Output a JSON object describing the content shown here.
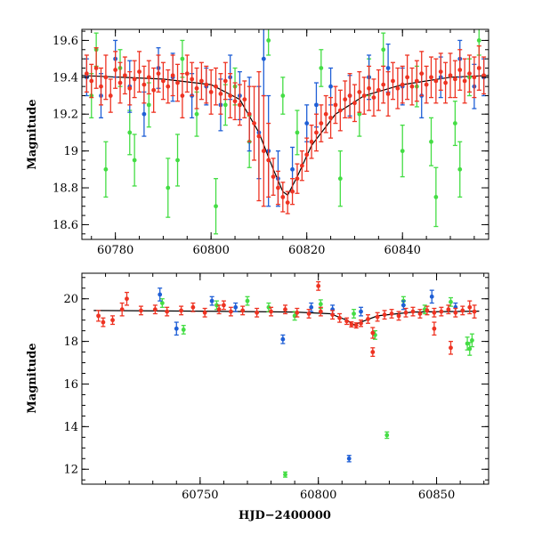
{
  "colors": {
    "series_red": "#ee3322",
    "series_blue": "#1f5fd6",
    "series_green": "#44dd44",
    "model_line": "#000000"
  },
  "chart_data": [
    {
      "type": "scatter",
      "xlabel": "",
      "ylabel": "Magnitude",
      "xlim": [
        60773,
        60858
      ],
      "ylim": [
        19.66,
        18.52
      ],
      "y_inverted": true,
      "x_ticks": [
        60780,
        60800,
        60820,
        60840
      ],
      "y_ticks": [
        18.6,
        18.8,
        19.0,
        19.2,
        19.4,
        19.6
      ],
      "y_tick_labels": [
        "18.6",
        "18.8",
        "19",
        "19.2",
        "19.4",
        "19.6"
      ],
      "grid": false,
      "model_curve": {
        "x": [
          60773,
          60790,
          60800,
          60806,
          60810,
          60813,
          60815,
          60816,
          60818,
          60821,
          60826,
          60832,
          60840,
          60850,
          60858
        ],
        "y": [
          19.41,
          19.39,
          19.36,
          19.28,
          19.1,
          18.9,
          18.78,
          18.76,
          18.86,
          19.03,
          19.2,
          19.3,
          19.36,
          19.4,
          19.41
        ]
      },
      "series": [
        {
          "color": "#44dd44",
          "x": [
            60775,
            60778,
            60781,
            60784,
            60787,
            60791,
            60794,
            60797,
            60801,
            60805,
            60808,
            60812,
            60818,
            60823,
            60827,
            60831,
            60836,
            60840,
            60843,
            60847,
            60851,
            60854,
            60856,
            60776,
            60783,
            60793,
            60803,
            60815,
            60833,
            60846,
            60852
          ],
          "y": [
            19.3,
            18.9,
            19.45,
            18.95,
            19.25,
            18.8,
            19.5,
            19.2,
            18.7,
            19.35,
            19.05,
            19.6,
            19.1,
            19.45,
            18.85,
            19.2,
            19.55,
            19.0,
            19.35,
            18.75,
            19.15,
            19.4,
            19.6,
            19.55,
            19.1,
            18.95,
            19.25,
            19.3,
            19.4,
            19.05,
            18.9
          ],
          "err": [
            0.12,
            0.15,
            0.1,
            0.14,
            0.12,
            0.16,
            0.1,
            0.12,
            0.15,
            0.1,
            0.14,
            0.08,
            0.12,
            0.1,
            0.15,
            0.12,
            0.09,
            0.14,
            0.11,
            0.16,
            0.12,
            0.1,
            0.08,
            0.09,
            0.12,
            0.14,
            0.11,
            0.1,
            0.1,
            0.13,
            0.15
          ]
        },
        {
          "color": "#1f5fd6",
          "x": [
            60774,
            60777,
            60780,
            60783,
            60786,
            60789,
            60792,
            60796,
            60799,
            60802,
            60804,
            60806,
            60808,
            60810,
            60811,
            60812,
            60814,
            60817,
            60820,
            60822,
            60825,
            60829,
            60833,
            60837,
            60840,
            60844,
            60848,
            60852,
            60855,
            60857
          ],
          "y": [
            19.4,
            19.3,
            19.5,
            19.35,
            19.2,
            19.45,
            19.4,
            19.3,
            19.35,
            19.25,
            19.4,
            19.3,
            19.2,
            19.1,
            19.5,
            19.0,
            18.85,
            18.9,
            19.15,
            19.25,
            19.35,
            19.3,
            19.4,
            19.45,
            19.35,
            19.3,
            19.4,
            19.5,
            19.35,
            19.4
          ],
          "err": [
            0.1,
            0.12,
            0.1,
            0.14,
            0.12,
            0.11,
            0.13,
            0.12,
            0.1,
            0.14,
            0.12,
            0.13,
            0.2,
            0.25,
            0.2,
            0.3,
            0.15,
            0.12,
            0.1,
            0.12,
            0.1,
            0.11,
            0.12,
            0.13,
            0.1,
            0.12,
            0.11,
            0.1,
            0.12,
            0.1
          ]
        },
        {
          "color": "#ee3322",
          "x": [
            60774,
            60775,
            60776,
            60777,
            60778,
            60779,
            60780,
            60781,
            60782,
            60783,
            60784,
            60785,
            60786,
            60787,
            60788,
            60789,
            60790,
            60791,
            60792,
            60793,
            60794,
            60795,
            60796,
            60797,
            60798,
            60799,
            60800,
            60801,
            60802,
            60803,
            60804,
            60805,
            60806,
            60807,
            60808,
            60809,
            60810,
            60811,
            60812,
            60813,
            60814,
            60815,
            60816,
            60817,
            60818,
            60819,
            60820,
            60821,
            60822,
            60823,
            60824,
            60825,
            60826,
            60827,
            60828,
            60829,
            60830,
            60831,
            60832,
            60833,
            60834,
            60835,
            60836,
            60837,
            60838,
            60839,
            60840,
            60841,
            60842,
            60843,
            60844,
            60845,
            60846,
            60847,
            60848,
            60849,
            60850,
            60851,
            60852,
            60853,
            60854,
            60855,
            60856,
            60857
          ],
          "y": [
            19.42,
            19.38,
            19.45,
            19.35,
            19.4,
            19.3,
            19.44,
            19.37,
            19.41,
            19.34,
            19.39,
            19.43,
            19.36,
            19.4,
            19.33,
            19.42,
            19.38,
            19.35,
            19.41,
            19.37,
            19.3,
            19.42,
            19.39,
            19.34,
            19.38,
            19.36,
            19.32,
            19.35,
            19.31,
            19.38,
            19.3,
            19.27,
            19.25,
            19.28,
            19.2,
            19.15,
            19.08,
            19.0,
            18.95,
            18.86,
            18.8,
            18.75,
            18.72,
            18.78,
            18.85,
            18.92,
            18.98,
            19.05,
            19.1,
            19.15,
            19.2,
            19.18,
            19.25,
            19.22,
            19.28,
            19.3,
            19.26,
            19.32,
            19.3,
            19.34,
            19.29,
            19.33,
            19.36,
            19.31,
            19.38,
            19.34,
            19.36,
            19.4,
            19.35,
            19.38,
            19.42,
            19.36,
            19.4,
            19.38,
            19.43,
            19.37,
            19.41,
            19.39,
            19.44,
            19.38,
            19.42,
            19.4,
            19.45,
            19.41
          ],
          "err": [
            0.1,
            0.09,
            0.11,
            0.1,
            0.12,
            0.09,
            0.1,
            0.11,
            0.1,
            0.09,
            0.1,
            0.11,
            0.1,
            0.09,
            0.12,
            0.1,
            0.1,
            0.09,
            0.11,
            0.1,
            0.12,
            0.1,
            0.09,
            0.11,
            0.1,
            0.1,
            0.12,
            0.1,
            0.11,
            0.1,
            0.12,
            0.1,
            0.11,
            0.1,
            0.15,
            0.2,
            0.35,
            0.3,
            0.2,
            0.1,
            0.09,
            0.08,
            0.06,
            0.07,
            0.08,
            0.08,
            0.09,
            0.09,
            0.1,
            0.1,
            0.1,
            0.11,
            0.1,
            0.11,
            0.1,
            0.12,
            0.1,
            0.11,
            0.1,
            0.12,
            0.1,
            0.11,
            0.1,
            0.12,
            0.1,
            0.11,
            0.1,
            0.12,
            0.1,
            0.11,
            0.12,
            0.1,
            0.11,
            0.12,
            0.1,
            0.11,
            0.12,
            0.1,
            0.11,
            0.12,
            0.1,
            0.11,
            0.12,
            0.1
          ]
        }
      ]
    },
    {
      "type": "scatter",
      "xlabel": "HJD−2400000",
      "ylabel": "Magnitude",
      "xlim": [
        60700,
        60872
      ],
      "ylim": [
        21.2,
        11.3
      ],
      "y_inverted": true,
      "x_ticks": [
        60750,
        60800,
        60850
      ],
      "y_ticks": [
        12,
        14,
        16,
        18,
        20
      ],
      "y_tick_labels": [
        "12",
        "14",
        "16",
        "18",
        "20"
      ],
      "grid": false,
      "model_curve": {
        "x": [
          60705,
          60750,
          60790,
          60805,
          60812,
          60815,
          60825,
          60840,
          60868
        ],
        "y": [
          19.45,
          19.42,
          19.38,
          19.3,
          19.0,
          18.78,
          19.2,
          19.38,
          19.42
        ]
      },
      "series": [
        {
          "color": "#44dd44",
          "x": [
            60786,
            60829,
            60734,
            60743,
            60757,
            60770,
            60779,
            60790,
            60801,
            60815,
            60824,
            60836,
            60845,
            60856,
            60863,
            60864,
            60865
          ],
          "y": [
            11.75,
            13.6,
            19.8,
            18.55,
            19.7,
            19.9,
            19.6,
            19.2,
            19.75,
            19.3,
            18.3,
            19.9,
            19.5,
            19.85,
            17.9,
            17.65,
            18.05
          ],
          "err": [
            0.12,
            0.15,
            0.2,
            0.2,
            0.2,
            0.2,
            0.2,
            0.2,
            0.2,
            0.2,
            0.2,
            0.2,
            0.2,
            0.2,
            0.3,
            0.3,
            0.3
          ]
        },
        {
          "color": "#1f5fd6",
          "x": [
            60813,
            60740,
            60765,
            60785,
            60806,
            60818,
            60836,
            60848,
            60858,
            60733,
            60755,
            60797
          ],
          "y": [
            12.5,
            18.6,
            19.6,
            18.1,
            19.5,
            19.4,
            19.7,
            20.1,
            19.6,
            20.2,
            19.9,
            19.6
          ],
          "err": [
            0.15,
            0.3,
            0.2,
            0.2,
            0.2,
            0.2,
            0.2,
            0.3,
            0.2,
            0.3,
            0.2,
            0.2
          ]
        },
        {
          "color": "#ee3322",
          "x": [
            60707,
            60709,
            60713,
            60717,
            60719,
            60725,
            60731,
            60736,
            60742,
            60747,
            60752,
            60758,
            60763,
            60768,
            60774,
            60780,
            60786,
            60791,
            60796,
            60801,
            60806,
            60809,
            60812,
            60814,
            60816,
            60818,
            60821,
            60823,
            60825,
            60828,
            60831,
            60834,
            60837,
            60840,
            60843,
            60846,
            60849,
            60852,
            60855,
            60858,
            60861,
            60864,
            60866,
            60856,
            60849,
            60823,
            60800,
            60760
          ],
          "y": [
            19.2,
            18.9,
            19.0,
            19.5,
            20.0,
            19.45,
            19.5,
            19.4,
            19.45,
            19.6,
            19.35,
            19.5,
            19.4,
            19.45,
            19.35,
            19.4,
            19.5,
            19.35,
            19.3,
            19.4,
            19.25,
            19.1,
            18.95,
            18.8,
            18.75,
            18.85,
            19.05,
            17.5,
            19.15,
            19.25,
            19.3,
            19.2,
            19.35,
            19.4,
            19.3,
            19.45,
            19.35,
            19.4,
            19.5,
            19.35,
            19.45,
            19.6,
            19.4,
            17.7,
            18.6,
            18.4,
            20.6,
            19.7
          ],
          "err": [
            0.25,
            0.2,
            0.2,
            0.3,
            0.3,
            0.2,
            0.2,
            0.2,
            0.2,
            0.2,
            0.2,
            0.2,
            0.2,
            0.2,
            0.2,
            0.2,
            0.2,
            0.2,
            0.2,
            0.2,
            0.2,
            0.2,
            0.15,
            0.12,
            0.12,
            0.15,
            0.2,
            0.2,
            0.2,
            0.2,
            0.2,
            0.2,
            0.2,
            0.2,
            0.2,
            0.2,
            0.2,
            0.2,
            0.2,
            0.2,
            0.2,
            0.3,
            0.3,
            0.3,
            0.3,
            0.25,
            0.2,
            0.2
          ]
        }
      ]
    }
  ]
}
